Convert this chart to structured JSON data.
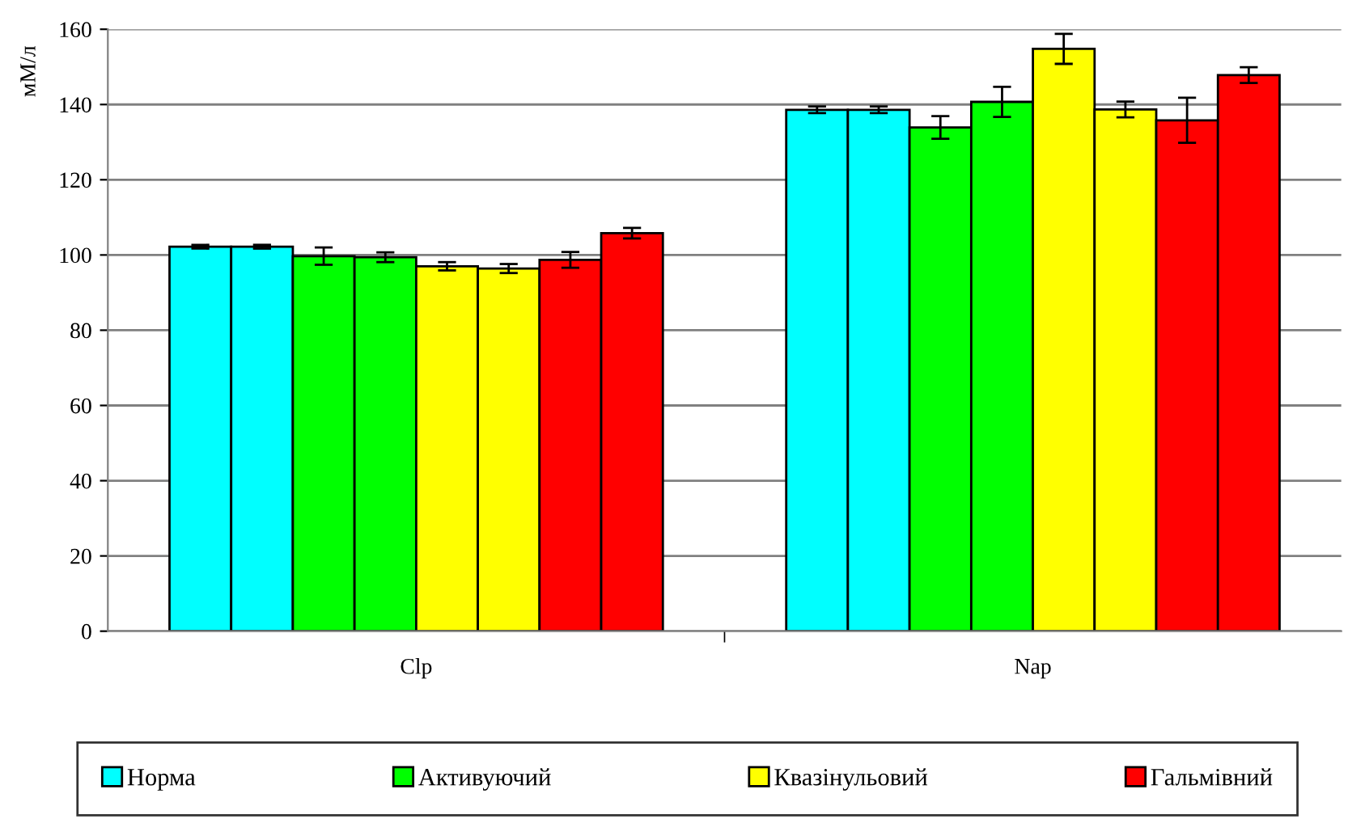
{
  "chart_data": {
    "type": "bar",
    "ylabel": "мМ/л",
    "categories": [
      "Clp",
      "Nap"
    ],
    "series": [
      {
        "name": "Норма",
        "color": "#00ffff",
        "values": [
          102.2,
          138.6
        ],
        "errors": [
          0.5,
          0.9
        ]
      },
      {
        "color": "#00ffff",
        "values": [
          102.2,
          138.6
        ],
        "errors": [
          0.5,
          0.9
        ]
      },
      {
        "name": "Активуючий",
        "color": "#00ff00",
        "values": [
          99.7,
          133.9
        ],
        "errors": [
          2.3,
          3
        ]
      },
      {
        "color": "#00ff00",
        "values": [
          99.4,
          140.7
        ],
        "errors": [
          1.3,
          4
        ]
      },
      {
        "name": "Квазінульовий",
        "color": "#ffff00",
        "values": [
          97,
          154.8
        ],
        "errors": [
          1.1,
          4
        ]
      },
      {
        "color": "#ffff00",
        "values": [
          96.4,
          138.7
        ],
        "errors": [
          1.2,
          2.1
        ]
      },
      {
        "name": "Гальмівний",
        "color": "#ff0000",
        "values": [
          98.7,
          135.8
        ],
        "errors": [
          2.1,
          6
        ]
      },
      {
        "color": "#ff0000",
        "values": [
          105.8,
          147.8
        ],
        "errors": [
          1.4,
          2.1
        ]
      }
    ],
    "ylim": [
      0,
      160
    ],
    "yticks": [
      0,
      20,
      40,
      60,
      80,
      100,
      120,
      140,
      160
    ],
    "grid": "y",
    "legend": "bottom"
  }
}
